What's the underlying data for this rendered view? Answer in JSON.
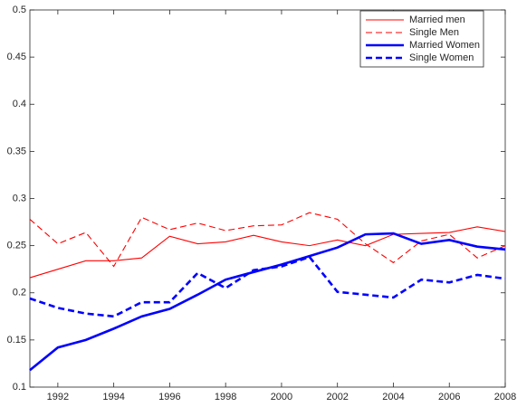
{
  "chart_data": {
    "type": "line",
    "x": [
      1991,
      1992,
      1993,
      1994,
      1995,
      1996,
      1997,
      1998,
      1999,
      2000,
      2001,
      2002,
      2003,
      2004,
      2005,
      2006,
      2007,
      2008
    ],
    "series": [
      {
        "name": "Married men",
        "color": "#ff0000",
        "dashed": false,
        "bold": false,
        "values": [
          0.216,
          0.225,
          0.234,
          0.234,
          0.237,
          0.26,
          0.252,
          0.254,
          0.261,
          0.254,
          0.25,
          0.256,
          0.25,
          0.262,
          0.263,
          0.264,
          0.27,
          0.265
        ]
      },
      {
        "name": "Single Men",
        "color": "#ff0000",
        "dashed": true,
        "bold": false,
        "values": [
          0.278,
          0.252,
          0.264,
          0.228,
          0.28,
          0.267,
          0.274,
          0.266,
          0.271,
          0.272,
          0.285,
          0.278,
          0.252,
          0.232,
          0.255,
          0.262,
          0.237,
          0.25
        ]
      },
      {
        "name": "Married Women",
        "color": "#0000ff",
        "dashed": false,
        "bold": true,
        "values": [
          0.118,
          0.142,
          0.15,
          0.162,
          0.175,
          0.183,
          0.198,
          0.214,
          0.222,
          0.23,
          0.239,
          0.248,
          0.262,
          0.263,
          0.252,
          0.256,
          0.249,
          0.246
        ]
      },
      {
        "name": "Single Women",
        "color": "#0000ff",
        "dashed": true,
        "bold": true,
        "values": [
          0.194,
          0.184,
          0.178,
          0.175,
          0.19,
          0.19,
          0.221,
          0.205,
          0.224,
          0.228,
          0.238,
          0.201,
          0.198,
          0.195,
          0.214,
          0.211,
          0.219,
          0.215
        ]
      }
    ],
    "xlim": [
      1991,
      2008
    ],
    "xticks": [
      1992,
      1994,
      1996,
      1998,
      2000,
      2002,
      2004,
      2006,
      2008
    ],
    "ylim": [
      0.1,
      0.5
    ],
    "yticks": [
      0.1,
      0.15,
      0.2,
      0.25,
      0.3,
      0.35,
      0.4,
      0.45,
      0.5
    ],
    "grid": false,
    "legend": "top-right"
  }
}
